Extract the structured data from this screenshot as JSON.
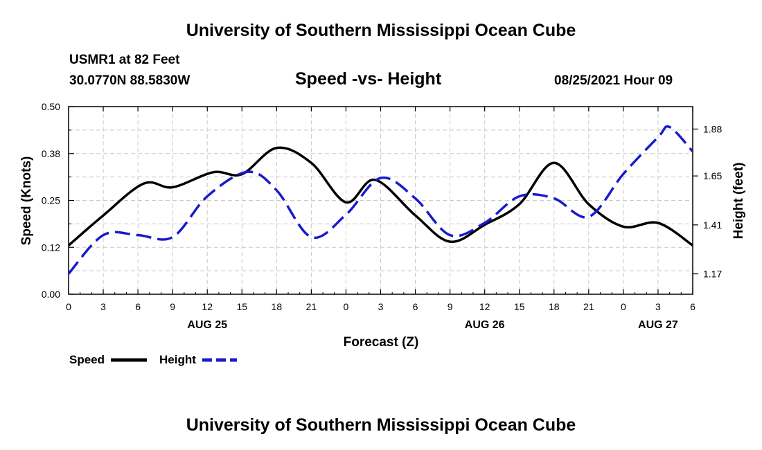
{
  "header": {
    "title_top": "University of Southern Mississippi Ocean Cube",
    "station_line": "USMR1 at 82 Feet",
    "coords_line": "30.0770N  88.5830W",
    "plot_title": "Speed -vs- Height",
    "timestamp": "08/25/2021 Hour 09",
    "title_bottom": "University of Southern Mississippi Ocean Cube"
  },
  "colors": {
    "speed": "#000000",
    "height": "#1a1acc",
    "grid": "#c8c8c8"
  },
  "legend": {
    "speed_label": "Speed",
    "height_label": "Height"
  },
  "chart_data": {
    "type": "line",
    "title": "Speed -vs- Height",
    "xlabel": "Forecast (Z)",
    "ylabel_left": "Speed (Knots)",
    "ylabel_right": "Height (feet)",
    "x_unit": "hours since 2021-08-25 00Z",
    "xlim": [
      0,
      54
    ],
    "ylim_left": [
      0,
      0.5
    ],
    "ylim_right": [
      1.07,
      1.99
    ],
    "x_ticks": [
      0,
      3,
      6,
      9,
      12,
      15,
      18,
      21,
      24,
      27,
      30,
      33,
      36,
      39,
      42,
      45,
      48,
      51,
      54
    ],
    "x_tick_labels": [
      "0",
      "3",
      "6",
      "9",
      "12",
      "15",
      "18",
      "21",
      "0",
      "3",
      "6",
      "9",
      "12",
      "15",
      "18",
      "21",
      "0",
      "3",
      "6"
    ],
    "date_labels": [
      {
        "x": 12,
        "label": "AUG 25"
      },
      {
        "x": 36,
        "label": "AUG 26"
      },
      {
        "x": 51,
        "label": "AUG 27"
      }
    ],
    "y_left_ticks": [
      0.0,
      0.125,
      0.25,
      0.375,
      0.5
    ],
    "y_left_tick_labels": [
      "0.00",
      "0.12",
      "0.25",
      "0.38",
      "0.50"
    ],
    "y_right_ticks": [
      1.17,
      1.41,
      1.65,
      1.88
    ],
    "y_right_tick_labels": [
      "1.17",
      "1.41",
      "1.65",
      "1.88"
    ],
    "grid": true,
    "legend_position": "bottom-left",
    "series": [
      {
        "name": "Speed",
        "axis": "left",
        "style": "solid",
        "x": [
          0,
          3,
          6.5,
          9,
          12.5,
          15,
          18,
          21,
          24,
          26.5,
          30,
          33,
          36,
          39,
          42,
          45,
          48,
          51,
          54
        ],
        "values": [
          0.13,
          0.21,
          0.295,
          0.285,
          0.325,
          0.32,
          0.39,
          0.35,
          0.245,
          0.305,
          0.21,
          0.14,
          0.185,
          0.24,
          0.35,
          0.24,
          0.18,
          0.19,
          0.13
        ]
      },
      {
        "name": "Height",
        "axis": "right",
        "style": "dashed",
        "x": [
          0,
          3,
          6,
          9,
          12,
          15.5,
          18,
          21,
          24,
          27,
          30,
          33,
          36,
          39,
          42,
          45,
          48,
          51,
          52,
          54
        ],
        "values": [
          1.17,
          1.36,
          1.36,
          1.35,
          1.55,
          1.67,
          1.58,
          1.35,
          1.46,
          1.64,
          1.54,
          1.36,
          1.42,
          1.55,
          1.54,
          1.45,
          1.66,
          1.84,
          1.89,
          1.77
        ]
      }
    ]
  }
}
